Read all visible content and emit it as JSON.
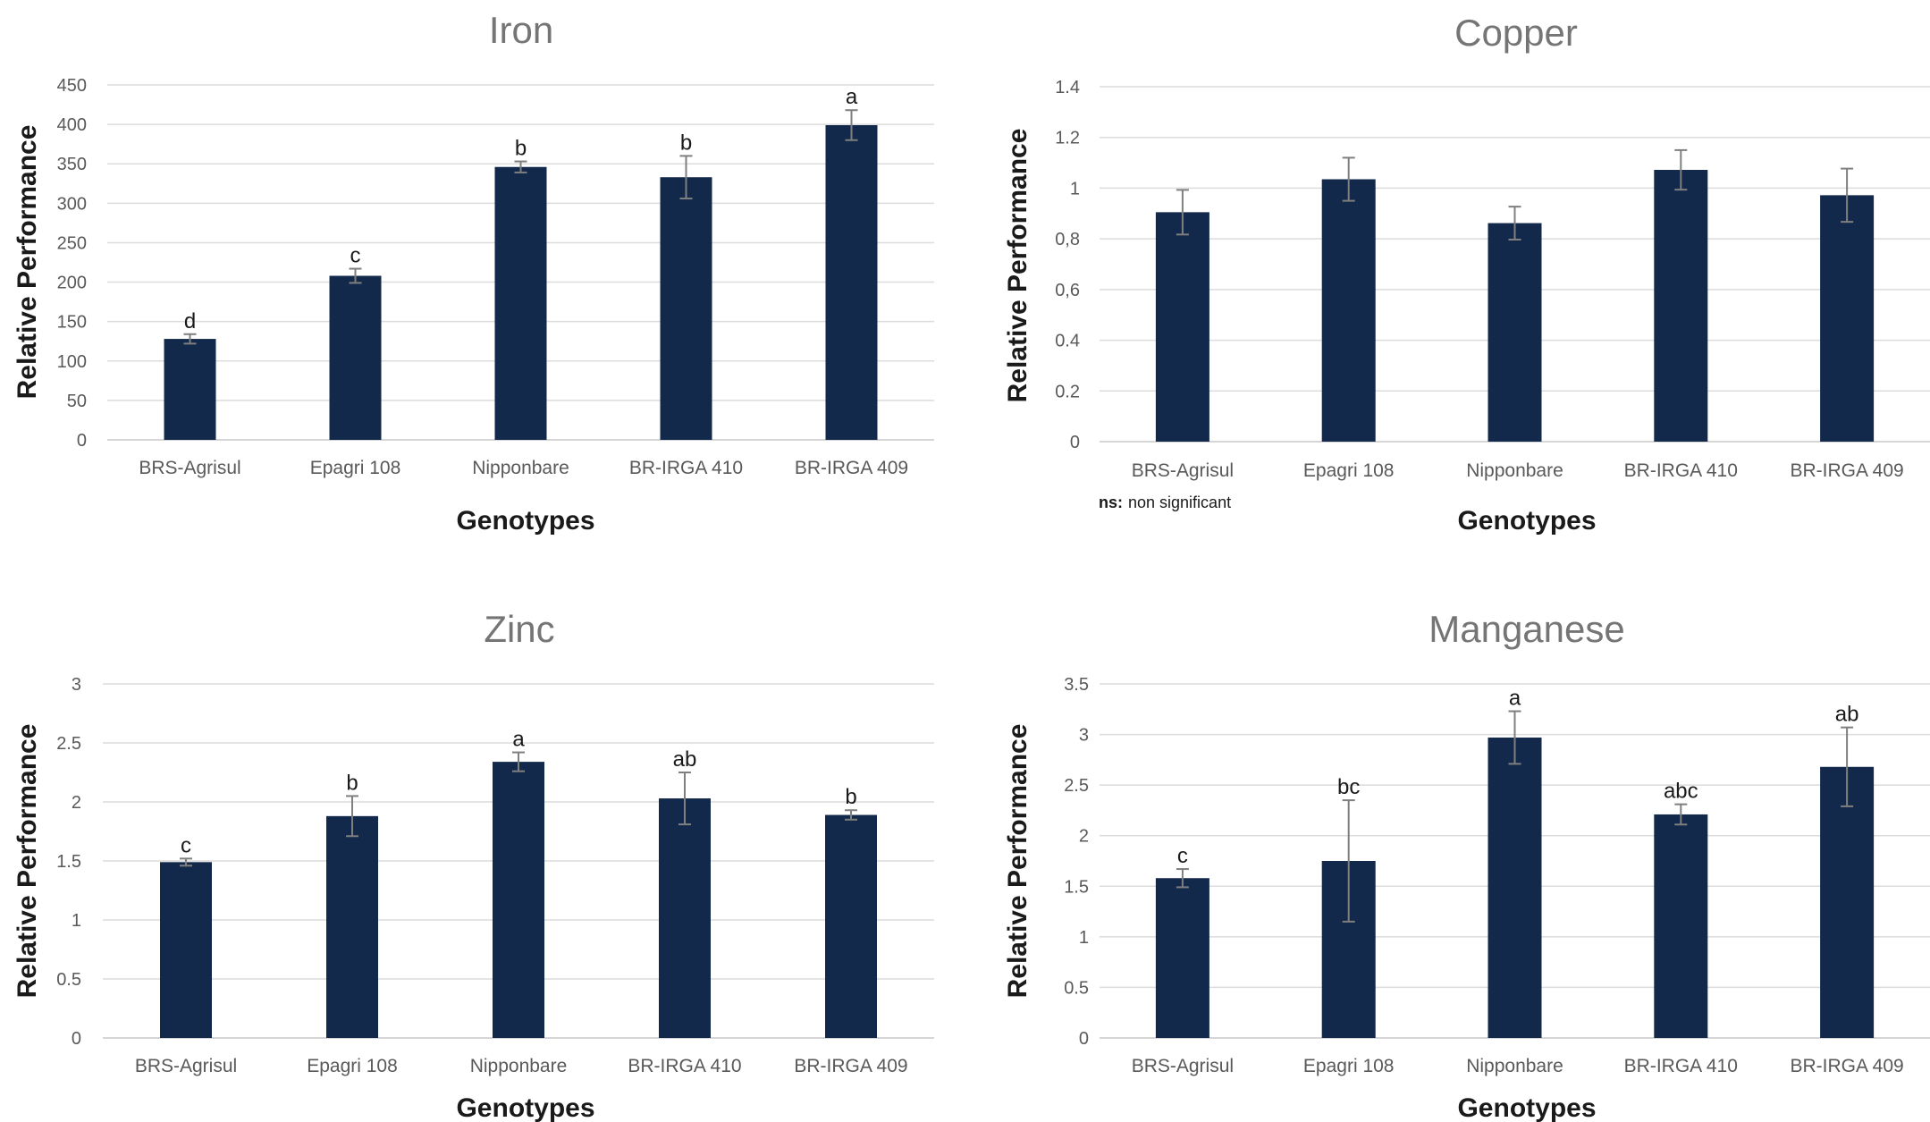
{
  "chart_data": [
    {
      "type": "bar",
      "title": "Iron",
      "xlabel": "Genotypes",
      "ylabel": "Relative Performance",
      "categories": [
        "BRS-Agrisul",
        "Epagri 108",
        "Nipponbare",
        "BR-IRGA 410",
        "BR-IRGA 409"
      ],
      "values": [
        128,
        208,
        346,
        333,
        399
      ],
      "errors": [
        6,
        9,
        7,
        27,
        19
      ],
      "letters": [
        "d",
        "c",
        "b",
        "b",
        "a"
      ],
      "ylim": [
        0,
        450
      ],
      "yticks": [
        "0",
        "50",
        "100",
        "150",
        "200",
        "250",
        "300",
        "350",
        "400",
        "450"
      ],
      "grid": true,
      "bar_color": "#13294b"
    },
    {
      "type": "bar",
      "title": "Copper",
      "xlabel": "Genotypes",
      "ylabel": "Relative Performance",
      "categories": [
        "BRS-Agrisul",
        "Epagri 108",
        "Nipponbare",
        "BR-IRGA 410",
        "BR-IRGA 409"
      ],
      "values": [
        0.905,
        1.035,
        0.862,
        1.072,
        0.972
      ],
      "errors": [
        0.088,
        0.085,
        0.065,
        0.078,
        0.105
      ],
      "letters": [
        "",
        "",
        "",
        "",
        ""
      ],
      "ylim": [
        0,
        1.4
      ],
      "yticks": [
        "0",
        "0.2",
        "0.4",
        "0,6",
        "0,8",
        "1",
        "1.2",
        "1.4"
      ],
      "grid": true,
      "bar_color": "#13294b",
      "note_bold": "ns:",
      "note_text": "non significant"
    },
    {
      "type": "bar",
      "title": "Zinc",
      "xlabel": "Genotypes",
      "ylabel": "Relative Performance",
      "categories": [
        "BRS-Agrisul",
        "Epagri 108",
        "Nipponbare",
        "BR-IRGA 410",
        "BR-IRGA 409"
      ],
      "values": [
        1.49,
        1.88,
        2.34,
        2.03,
        1.89
      ],
      "errors": [
        0.03,
        0.17,
        0.08,
        0.22,
        0.04
      ],
      "letters": [
        "c",
        "b",
        "a",
        "ab",
        "b"
      ],
      "ylim": [
        0,
        3
      ],
      "yticks": [
        "0",
        "0.5",
        "1",
        "1.5",
        "2",
        "2.5",
        "3"
      ],
      "grid": true,
      "bar_color": "#13294b"
    },
    {
      "type": "bar",
      "title": "Manganese",
      "xlabel": "Genotypes",
      "ylabel": "Relative Performance",
      "categories": [
        "BRS-Agrisul",
        "Epagri 108",
        "Nipponbare",
        "BR-IRGA 410",
        "BR-IRGA 409"
      ],
      "values": [
        1.58,
        1.75,
        2.97,
        2.21,
        2.68
      ],
      "errors": [
        0.09,
        0.6,
        0.26,
        0.1,
        0.39
      ],
      "letters": [
        "c",
        "bc",
        "a",
        "abc",
        "ab"
      ],
      "ylim": [
        0,
        3.5
      ],
      "yticks": [
        "0",
        "0.5",
        "1",
        "1.5",
        "2",
        "2.5",
        "3",
        "3.5"
      ],
      "grid": true,
      "bar_color": "#13294b"
    }
  ]
}
